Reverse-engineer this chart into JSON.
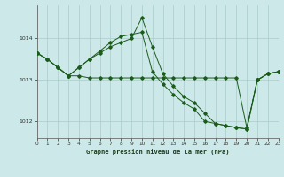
{
  "title": "Graphe pression niveau de la mer (hPa)",
  "bg_color": "#cce8e8",
  "grid_color": "#aacccc",
  "line_color": "#1a5c1a",
  "x_min": 0,
  "x_max": 23,
  "y_min": 1011.6,
  "y_max": 1014.8,
  "yticks": [
    1012,
    1013,
    1014
  ],
  "xticks": [
    0,
    1,
    2,
    3,
    4,
    5,
    6,
    7,
    8,
    9,
    10,
    11,
    12,
    13,
    14,
    15,
    16,
    17,
    18,
    19,
    20,
    21,
    22,
    23
  ],
  "line1_x": [
    0,
    1,
    2,
    3,
    4,
    5,
    6,
    7,
    8,
    9,
    10,
    11,
    12,
    13,
    14,
    15,
    16,
    17,
    18,
    19,
    20,
    21,
    22,
    23
  ],
  "line1_y": [
    1013.65,
    1013.5,
    1013.3,
    1013.1,
    1013.1,
    1013.05,
    1013.05,
    1013.05,
    1013.05,
    1013.05,
    1013.05,
    1013.05,
    1013.05,
    1013.05,
    1013.05,
    1013.05,
    1013.05,
    1013.05,
    1013.05,
    1013.05,
    1011.85,
    1013.0,
    1013.15,
    1013.2
  ],
  "line2_x": [
    0,
    1,
    2,
    3,
    4,
    5,
    6,
    7,
    8,
    9,
    10,
    11,
    12,
    13,
    14,
    15,
    16,
    17,
    18,
    19,
    20,
    21,
    22,
    23
  ],
  "line2_y": [
    1013.65,
    1013.5,
    1013.3,
    1013.1,
    1013.3,
    1013.5,
    1013.7,
    1013.9,
    1014.05,
    1014.1,
    1014.15,
    1013.2,
    1012.9,
    1012.65,
    1012.45,
    1012.3,
    1012.0,
    1011.95,
    1011.9,
    1011.85,
    1011.82,
    1013.0,
    1013.15,
    1013.2
  ],
  "line3_x": [
    0,
    1,
    2,
    3,
    4,
    5,
    6,
    7,
    8,
    9,
    10,
    11,
    12,
    13,
    14,
    15,
    16,
    17,
    18,
    19,
    20,
    21,
    22,
    23
  ],
  "line3_y": [
    1013.65,
    1013.5,
    1013.3,
    1013.1,
    1013.3,
    1013.5,
    1013.65,
    1013.8,
    1013.9,
    1014.0,
    1014.5,
    1013.8,
    1013.15,
    1012.85,
    1012.6,
    1012.45,
    1012.2,
    1011.95,
    1011.9,
    1011.85,
    1011.82,
    1013.0,
    1013.15,
    1013.2
  ]
}
